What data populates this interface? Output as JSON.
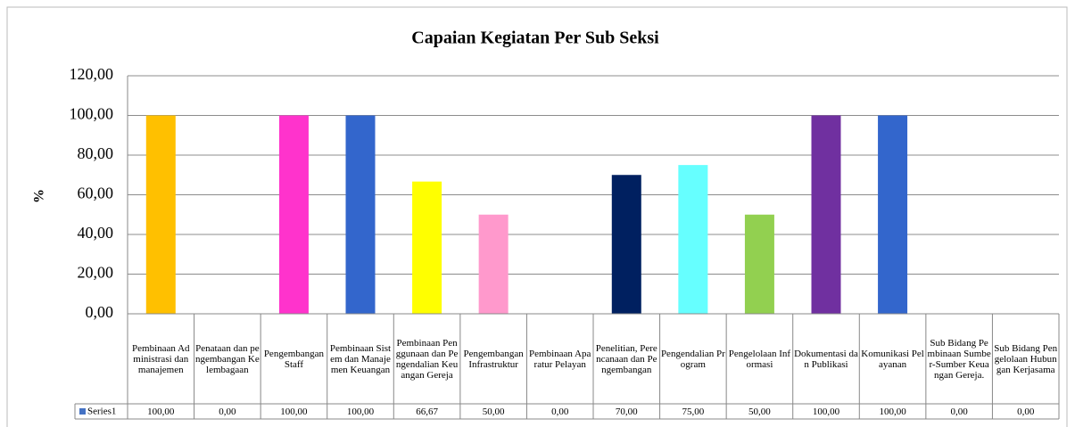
{
  "chart_data": {
    "type": "bar",
    "title": "Capaian Kegiatan Per Sub Seksi",
    "y_label": "%",
    "categories": [
      "Pembinaan Administrasi dan manajemen",
      "Penataan dan pengembangan Kelembagaan",
      "Pengembangan Staff",
      "Pembinaan Sistem dan Manajemen Keuangan",
      "Pembinaan Penggunaan dan Pengendalian Keuangan Gereja",
      "Pengembangan Infrastruktur",
      "Pembinaan Aparatur Pelayan",
      "Penelitian, Perencanaan dan Pengembangan",
      "Pengendalian Program",
      "Pengelolaan Informasi",
      "Dokumentasi dan Publikasi",
      "Komunikasi Pelayanan",
      "Sub Bidang Pembinaan Sumber-Sumber Keuangan Gereja.",
      "Sub Bidang Pengelolaan Hubungan Kerjasama"
    ],
    "series": [
      {
        "name": "Series1",
        "color": "#4472C4",
        "values": [
          100,
          0,
          100,
          100,
          66.67,
          50,
          0,
          70,
          75,
          50,
          100,
          100,
          0,
          0
        ],
        "value_labels": [
          "100,00",
          "0,00",
          "100,00",
          "100,00",
          "66,67",
          "50,00",
          "0,00",
          "70,00",
          "75,00",
          "50,00",
          "100,00",
          "100,00",
          "0,00",
          "0,00"
        ],
        "colors": [
          "#FFC000",
          "#4472C4",
          "#FF33CC",
          "#3366CC",
          "#FFFF00",
          "#FF99CC",
          "#4472C4",
          "#002060",
          "#66FFFF",
          "#92D050",
          "#7030A0",
          "#3366CC",
          "#4472C4",
          "#4472C4"
        ]
      }
    ],
    "ylim": [
      0,
      120
    ],
    "yticks": [
      {
        "value": 0,
        "label": "0,00"
      },
      {
        "value": 20,
        "label": "20,00"
      },
      {
        "value": 40,
        "label": "40,00"
      },
      {
        "value": 60,
        "label": "60,00"
      },
      {
        "value": 80,
        "label": "80,00"
      },
      {
        "value": 100,
        "label": "100,00"
      },
      {
        "value": 120,
        "label": "120,00"
      }
    ],
    "grid": true
  }
}
